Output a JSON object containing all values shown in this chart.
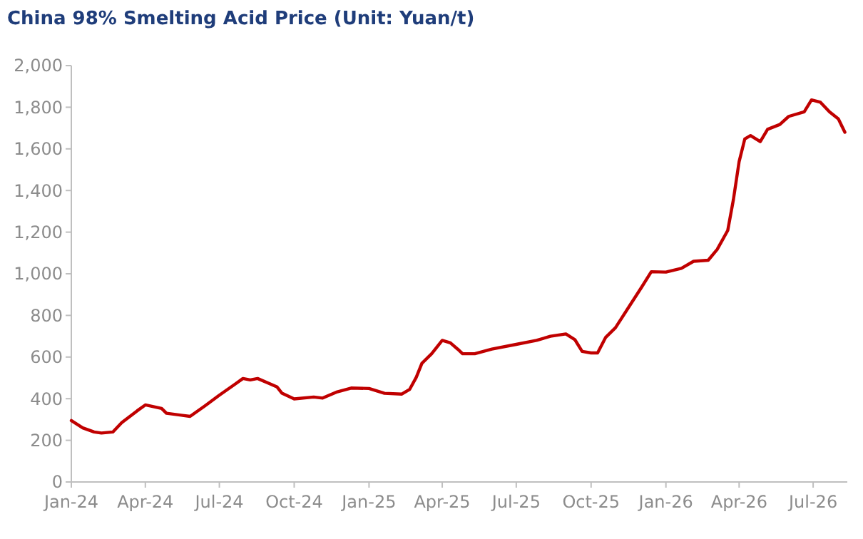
{
  "chart_data": {
    "type": "line",
    "title": "China 98% Smelting Acid Price (Unit: Yuan/t)",
    "x": [
      "2024-01-01",
      "2024-01-15",
      "2024-01-29",
      "2024-02-07",
      "2024-02-21",
      "2024-03-03",
      "2024-03-22",
      "2024-04-01",
      "2024-04-21",
      "2024-04-27",
      "2024-05-26",
      "2024-06-13",
      "2024-07-01",
      "2024-07-21",
      "2024-07-30",
      "2024-08-08",
      "2024-08-17",
      "2024-09-01",
      "2024-09-10",
      "2024-09-16",
      "2024-10-01",
      "2024-10-25",
      "2024-11-05",
      "2024-11-23",
      "2024-12-10",
      "2025-01-01",
      "2025-01-20",
      "2025-02-10",
      "2025-02-20",
      "2025-02-28",
      "2025-03-07",
      "2025-03-19",
      "2025-04-01",
      "2025-04-11",
      "2025-04-20",
      "2025-04-26",
      "2025-05-11",
      "2025-06-01",
      "2025-07-01",
      "2025-07-26",
      "2025-08-12",
      "2025-08-31",
      "2025-09-11",
      "2025-09-20",
      "2025-10-01",
      "2025-10-09",
      "2025-10-19",
      "2025-10-31",
      "2025-11-17",
      "2025-12-02",
      "2025-12-14",
      "2026-01-01",
      "2026-01-20",
      "2026-02-04",
      "2026-02-22",
      "2026-03-05",
      "2026-03-18",
      "2026-03-25",
      "2026-04-01",
      "2026-04-08",
      "2026-04-15",
      "2026-04-27",
      "2026-05-06",
      "2026-05-21",
      "2026-06-01",
      "2026-06-20",
      "2026-06-29",
      "2026-07-10",
      "2026-07-21",
      "2026-08-01",
      "2026-08-09"
    ],
    "series": [
      {
        "color": "#c00000",
        "values": [
          295,
          260,
          240,
          235,
          240,
          285,
          342,
          370,
          353,
          330,
          315,
          365,
          417,
          472,
          497,
          490,
          497,
          472,
          456,
          426,
          399,
          408,
          403,
          433,
          451,
          449,
          426,
          422,
          445,
          502,
          570,
          616,
          680,
          668,
          638,
          616,
          616,
          638,
          661,
          680,
          700,
          711,
          684,
          627,
          620,
          620,
          695,
          741,
          844,
          935,
          1010,
          1008,
          1026,
          1060,
          1065,
          1117,
          1208,
          1357,
          1539,
          1648,
          1664,
          1635,
          1694,
          1717,
          1756,
          1778,
          1835,
          1824,
          1778,
          1744,
          1680
        ]
      }
    ],
    "xlim": [
      "2024-01-01",
      "2026-08-12"
    ],
    "xticks": [
      {
        "value": "2024-01-01",
        "label": "Jan-24"
      },
      {
        "value": "2024-04-01",
        "label": "Apr-24"
      },
      {
        "value": "2024-07-01",
        "label": "Jul-24"
      },
      {
        "value": "2024-10-01",
        "label": "Oct-24"
      },
      {
        "value": "2025-01-01",
        "label": "Jan-25"
      },
      {
        "value": "2025-04-01",
        "label": "Apr-25"
      },
      {
        "value": "2025-07-01",
        "label": "Jul-25"
      },
      {
        "value": "2025-10-01",
        "label": "Oct-25"
      },
      {
        "value": "2026-01-01",
        "label": "Jan-26"
      },
      {
        "value": "2026-04-01",
        "label": "Apr-26"
      },
      {
        "value": "2026-07-01",
        "label": "Jul-26"
      }
    ],
    "ylim": [
      0,
      2000
    ],
    "yticks": [
      {
        "value": 0,
        "label": "0"
      },
      {
        "value": 200,
        "label": "200"
      },
      {
        "value": 400,
        "label": "400"
      },
      {
        "value": 600,
        "label": "600"
      },
      {
        "value": 800,
        "label": "800"
      },
      {
        "value": 1000,
        "label": "1,000"
      },
      {
        "value": 1200,
        "label": "1,200"
      },
      {
        "value": 1400,
        "label": "1,400"
      },
      {
        "value": 1600,
        "label": "1,600"
      },
      {
        "value": 1800,
        "label": "1,800"
      },
      {
        "value": 2000,
        "label": "2,000"
      }
    ],
    "grid": false,
    "marker": "none",
    "line_style": "solid"
  }
}
